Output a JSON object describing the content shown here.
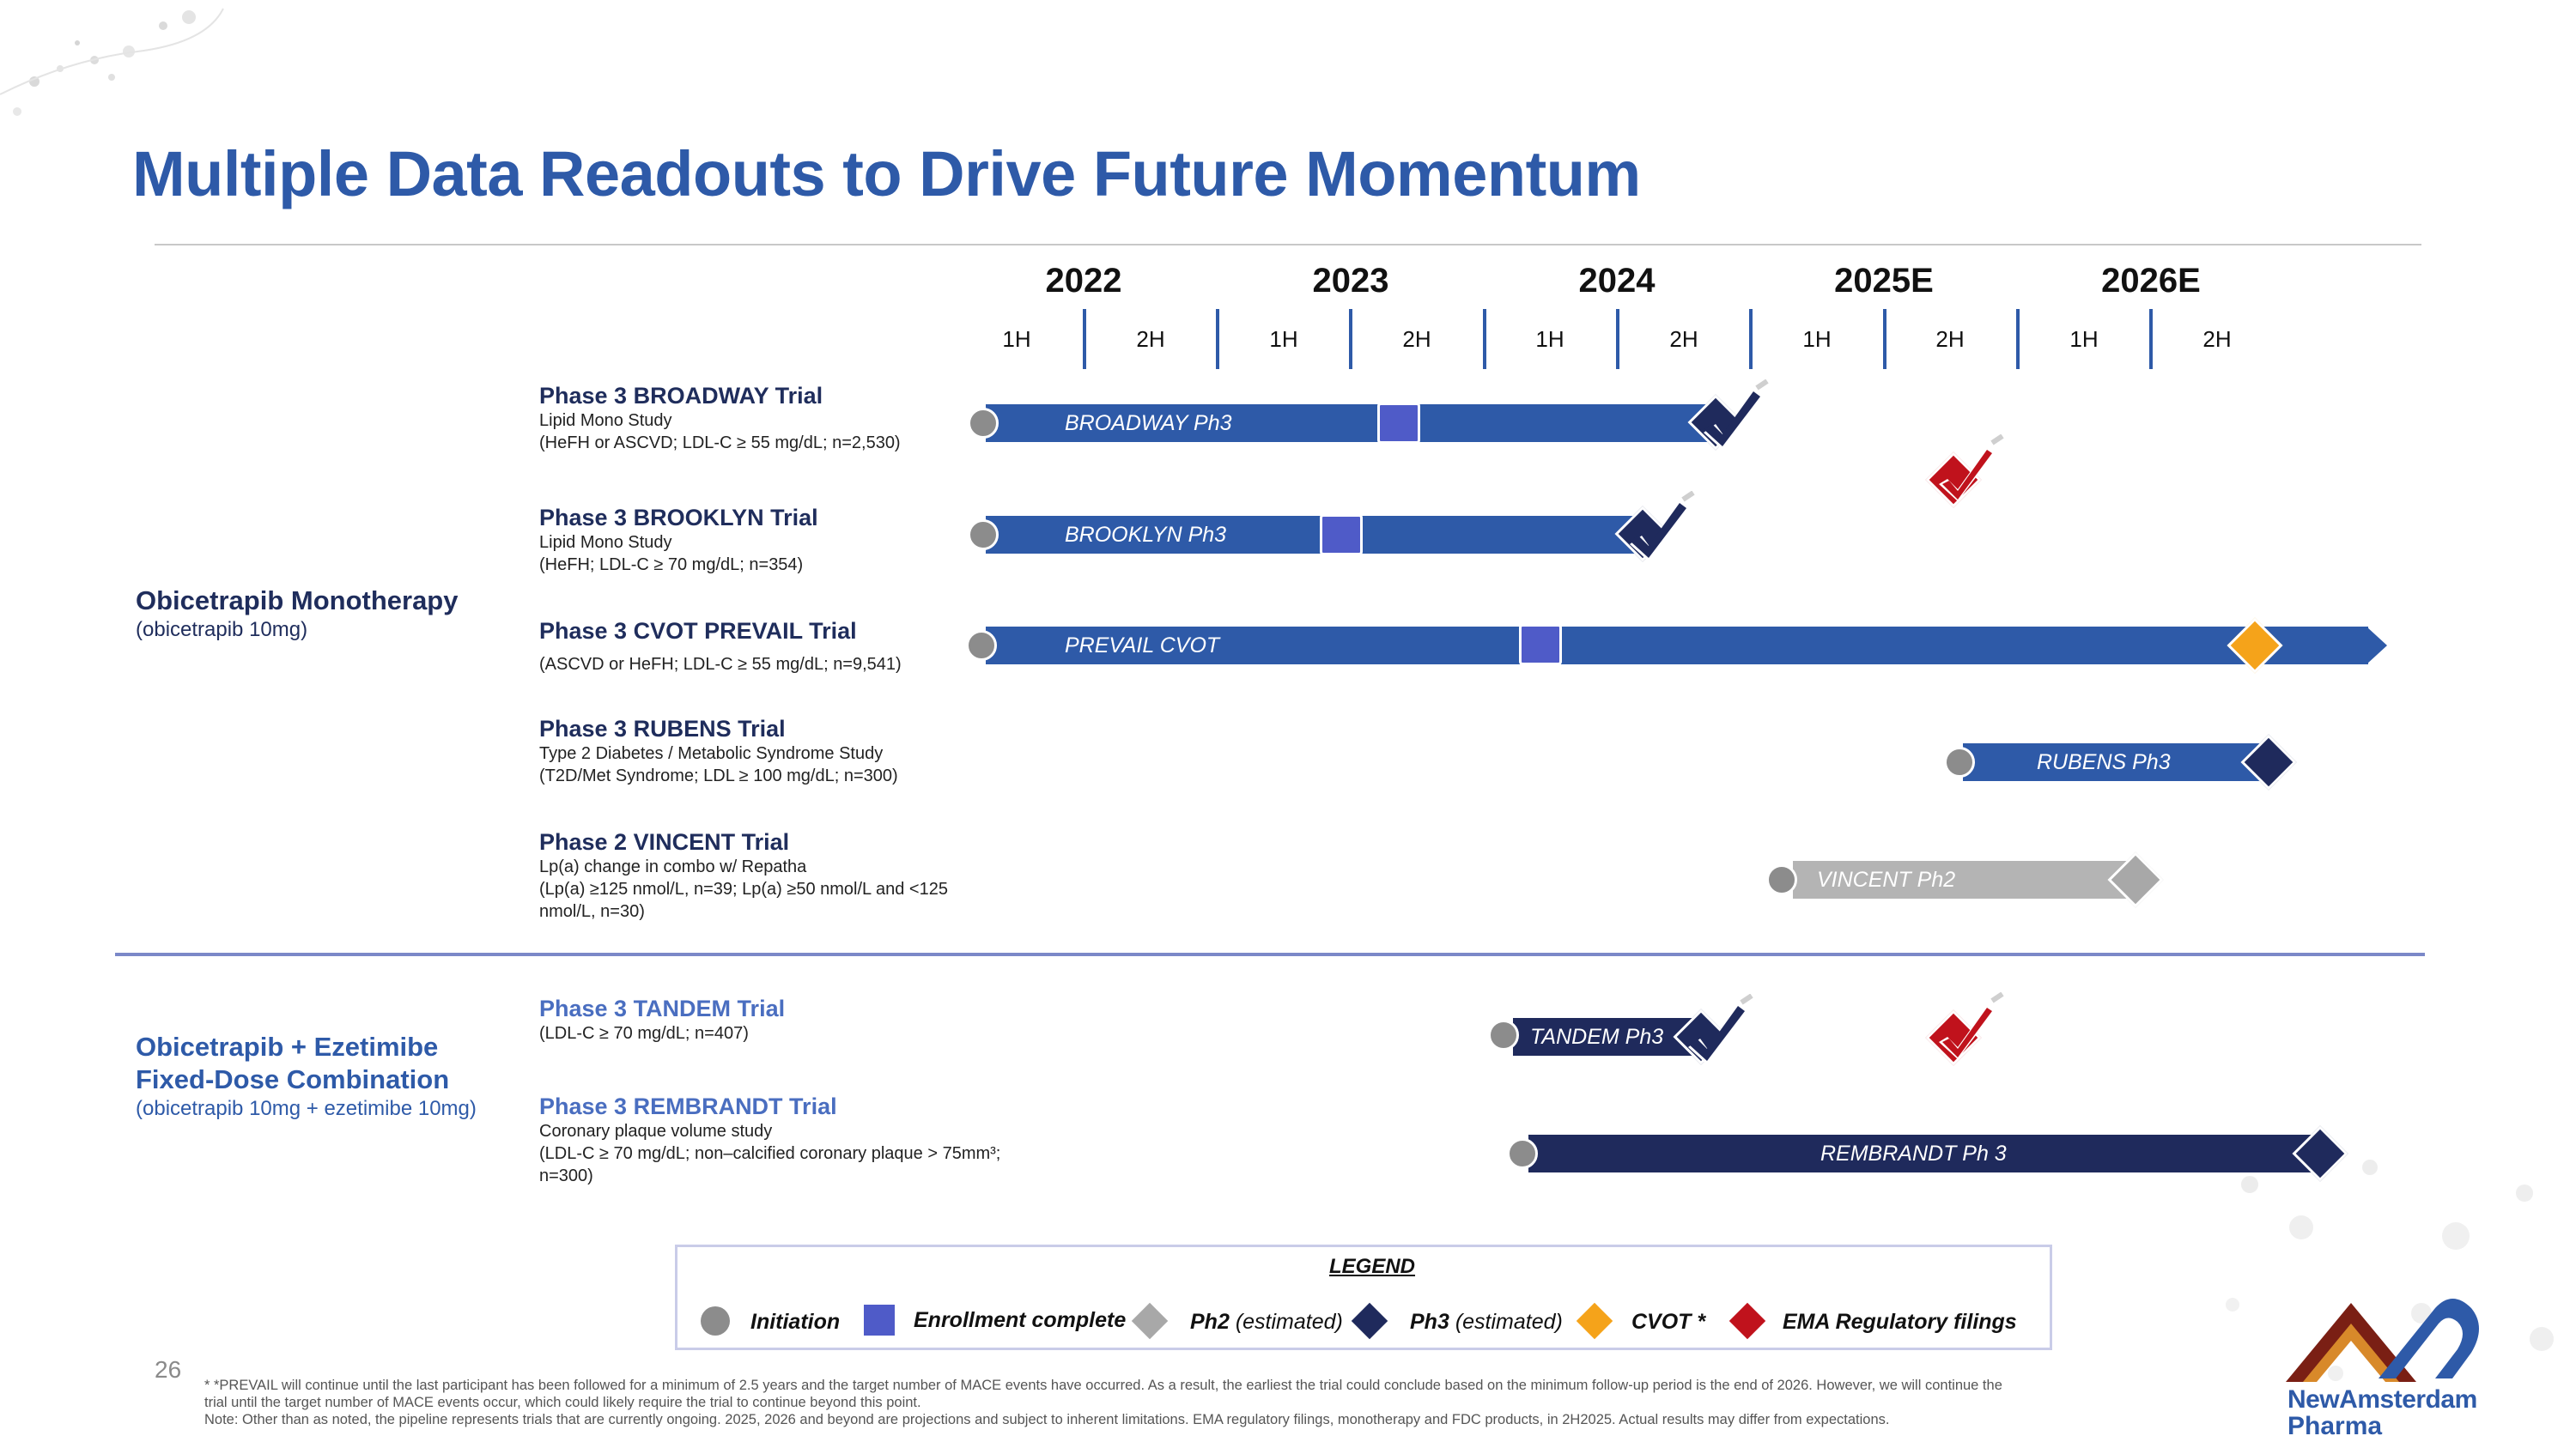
{
  "title": "Multiple Data Readouts to Drive Future Momentum",
  "timeline": {
    "years": [
      "2022",
      "2023",
      "2024",
      "2025E",
      "2026E"
    ],
    "halves": [
      "1H",
      "2H",
      "1H",
      "2H",
      "1H",
      "2H",
      "1H",
      "2H",
      "1H",
      "2H"
    ]
  },
  "groups": {
    "mono": {
      "title": "Obicetrapib Monotherapy",
      "subtitle": "(obicetrapib 10mg)"
    },
    "fdc": {
      "title_line1": "Obicetrapib + Ezetimibe",
      "title_line2": "Fixed-Dose Combination",
      "subtitle": "(obicetrapib 10mg + ezetimibe 10mg)"
    }
  },
  "trials": {
    "broadway": {
      "title": "Phase 3 BROADWAY Trial",
      "line1": "Lipid Mono Study",
      "line2": "(HeFH or ASCVD; LDL-C ≥ 55 mg/dL; n=2,530)",
      "bar_label": "BROADWAY Ph3"
    },
    "brooklyn": {
      "title": "Phase 3 BROOKLYN Trial",
      "line1": "Lipid Mono Study",
      "line2": "(HeFH; LDL-C ≥ 70 mg/dL; n=354)",
      "bar_label": "BROOKLYN Ph3"
    },
    "prevail": {
      "title": "Phase 3 CVOT PREVAIL Trial",
      "line1": "(ASCVD or HeFH; LDL-C ≥ 55 mg/dL; n=9,541)",
      "bar_label": "PREVAIL CVOT"
    },
    "rubens": {
      "title": "Phase 3 RUBENS Trial",
      "line1": "Type 2 Diabetes / Metabolic Syndrome Study",
      "line2": "(T2D/Met Syndrome; LDL ≥ 100 mg/dL; n=300)",
      "bar_label": "RUBENS Ph3"
    },
    "vincent": {
      "title": "Phase 2 VINCENT Trial",
      "line1": "Lp(a) change in combo w/ Repatha",
      "line2": "(Lp(a) ≥125 nmol/L, n=39; Lp(a) ≥50 nmol/L and <125 nmol/L, n=30)",
      "bar_label": "VINCENT Ph2"
    },
    "tandem": {
      "title": "Phase 3 TANDEM Trial",
      "line1": "(LDL-C ≥ 70 mg/dL; n=407)",
      "bar_label": "TANDEM Ph3"
    },
    "rembrandt": {
      "title": "Phase 3 REMBRANDT Trial",
      "line1": "Coronary plaque volume study",
      "line2": "(LDL-C ≥ 70 mg/dL; non–calcified coronary plaque > 75mm³; n=300)",
      "bar_label": "REMBRANDT Ph 3"
    }
  },
  "legend": {
    "title": "LEGEND",
    "initiation": "Initiation",
    "enrollment": "Enrollment complete",
    "ph2": "Ph2",
    "ph3": "Ph3",
    "estimated": "(estimated)",
    "cvot": "CVOT *",
    "ema": "EMA Regulatory filings"
  },
  "colors": {
    "title_blue": "#2e5aa8",
    "bar_blue": "#2e5aa8",
    "navy": "#1f2a5c",
    "enrollment": "#4f5bc8",
    "initiation": "#8c8c8c",
    "ph2_gray": "#b4b4b4",
    "cvot_orange": "#f5a31a",
    "ema_red": "#c0121c"
  },
  "footnote": {
    "line1": "* *PREVAIL will continue until the last participant has been followed for a minimum of 2.5 years and the target number of MACE events have occurred.  As a result, the earliest the trial could conclude based on the minimum follow-up period is the end of 2026.  However, we will continue the",
    "line2": "trial until the target number of MACE events occur, which could likely require the trial to continue beyond this point.",
    "line3": "Note: Other than as noted, the pipeline represents trials that are currently ongoing. 2025, 2026 and beyond are projections and subject to inherent limitations. EMA regulatory filings, monotherapy and FDC products,  in 2H2025. Actual results may differ from expectations."
  },
  "page_number": "26",
  "brand": {
    "line1": "NewAmsterdam",
    "line2": "Pharma"
  }
}
